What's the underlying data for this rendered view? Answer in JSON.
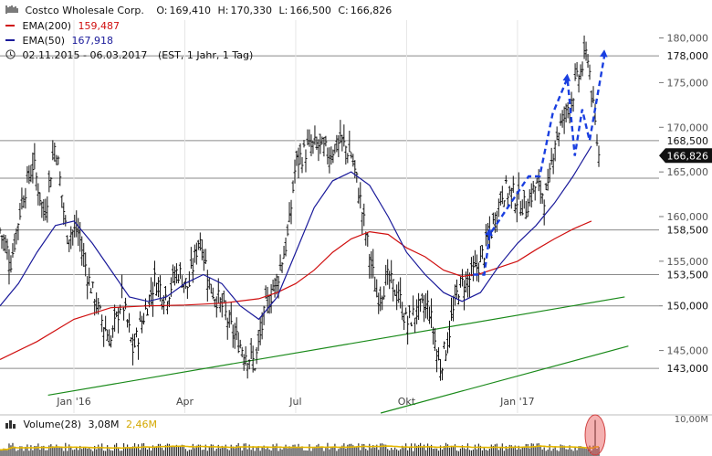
{
  "legend": {
    "bars_icon": "ohlc-bars-icon",
    "title": "Costco Wholesale Corp.",
    "ohlc": {
      "o_label": "O:",
      "o": "169,410",
      "h_label": "H:",
      "h": "170,330",
      "l_label": "L:",
      "l": "166,500",
      "c_label": "C:",
      "c": "166,826"
    },
    "ema200": {
      "label": "EMA(200)",
      "value": "159,487",
      "color": "#d01010"
    },
    "ema50": {
      "label": "EMA(50)",
      "value": "167,918",
      "color": "#1a1a9a"
    },
    "range": {
      "icon": "clock-icon",
      "text": "02.11.2015 - 06.03.2017",
      "meta": "(EST, 1 Jahr, 1 Tag)"
    }
  },
  "volume_panel": {
    "label": "Volume(28)",
    "value": "3,08M",
    "avg": "2,46M",
    "avg_color": "#e6b800",
    "scale_label": "10,00M"
  },
  "chart_data": {
    "type": "ohlc",
    "title": "Costco Wholesale Corp.",
    "y_range": [
      138,
      182
    ],
    "y_ticks": [
      "180,000",
      "175,000",
      "170,000",
      "165,000",
      "160,000",
      "155,000",
      "150,000",
      "145,000"
    ],
    "y_tick_values": [
      180,
      175,
      170,
      165,
      160,
      155,
      150,
      145
    ],
    "x_labels": [
      "Jan '16",
      "Apr",
      "Jul",
      "Okt",
      "Jan '17"
    ],
    "x_label_months": [
      2,
      5,
      8,
      11,
      14
    ],
    "months_span": [
      0,
      16.2
    ],
    "horizontal_levels": [
      178.0,
      168.5,
      164.3,
      158.5,
      153.5,
      150.0,
      143.0
    ],
    "price_tags": [
      {
        "value": 178.0,
        "label": "178,000"
      },
      {
        "value": 168.5,
        "label": "168,500"
      },
      {
        "value": 166.826,
        "label": "166,826",
        "current": true
      },
      {
        "value": 158.5,
        "label": "158,500"
      },
      {
        "value": 153.5,
        "label": "153,500"
      },
      {
        "value": 150.0,
        "label": "150,000"
      },
      {
        "value": 143.0,
        "label": "143,000"
      }
    ],
    "price_path_month_close": [
      [
        0.0,
        158.5
      ],
      [
        0.3,
        155.0
      ],
      [
        0.6,
        162.0
      ],
      [
        0.9,
        166.0
      ],
      [
        1.2,
        160.0
      ],
      [
        1.5,
        168.5
      ],
      [
        1.8,
        158.0
      ],
      [
        2.1,
        158.5
      ],
      [
        2.4,
        153.0
      ],
      [
        2.7,
        149.0
      ],
      [
        3.0,
        146.0
      ],
      [
        3.3,
        151.0
      ],
      [
        3.6,
        145.0
      ],
      [
        3.9,
        149.0
      ],
      [
        4.2,
        153.0
      ],
      [
        4.5,
        151.0
      ],
      [
        4.8,
        154.0
      ],
      [
        5.1,
        152.0
      ],
      [
        5.4,
        158.0
      ],
      [
        5.7,
        152.0
      ],
      [
        6.0,
        150.0
      ],
      [
        6.3,
        147.0
      ],
      [
        6.6,
        145.0
      ],
      [
        6.9,
        143.5
      ],
      [
        7.2,
        150.0
      ],
      [
        7.5,
        153.0
      ],
      [
        7.8,
        158.0
      ],
      [
        8.0,
        166.0
      ],
      [
        8.3,
        167.5
      ],
      [
        8.6,
        168.0
      ],
      [
        8.9,
        167.0
      ],
      [
        9.2,
        168.5
      ],
      [
        9.5,
        167.0
      ],
      [
        9.7,
        163.0
      ],
      [
        9.9,
        158.0
      ],
      [
        10.2,
        151.0
      ],
      [
        10.5,
        153.0
      ],
      [
        10.8,
        151.0
      ],
      [
        11.0,
        148.0
      ],
      [
        11.3,
        149.5
      ],
      [
        11.6,
        150.0
      ],
      [
        11.9,
        143.0
      ],
      [
        12.1,
        146.0
      ],
      [
        12.4,
        152.0
      ],
      [
        12.7,
        153.0
      ],
      [
        13.0,
        155.0
      ],
      [
        13.3,
        158.5
      ],
      [
        13.6,
        163.0
      ],
      [
        13.9,
        162.5
      ],
      [
        14.2,
        161.0
      ],
      [
        14.5,
        163.5
      ],
      [
        14.8,
        162.0
      ],
      [
        15.0,
        168.5
      ],
      [
        15.3,
        171.5
      ],
      [
        15.6,
        175.0
      ],
      [
        15.9,
        178.5
      ],
      [
        16.05,
        172.0
      ],
      [
        16.2,
        166.8
      ]
    ],
    "ema50_path": [
      [
        0.0,
        150.0
      ],
      [
        0.5,
        152.5
      ],
      [
        1.0,
        156.0
      ],
      [
        1.5,
        159.0
      ],
      [
        2.0,
        159.5
      ],
      [
        2.5,
        157.0
      ],
      [
        3.0,
        154.0
      ],
      [
        3.5,
        151.0
      ],
      [
        4.0,
        150.5
      ],
      [
        4.5,
        151.0
      ],
      [
        5.0,
        152.5
      ],
      [
        5.5,
        153.5
      ],
      [
        6.0,
        152.5
      ],
      [
        6.5,
        150.0
      ],
      [
        7.0,
        148.5
      ],
      [
        7.5,
        151.0
      ],
      [
        8.0,
        156.0
      ],
      [
        8.5,
        161.0
      ],
      [
        9.0,
        164.0
      ],
      [
        9.5,
        165.0
      ],
      [
        10.0,
        163.5
      ],
      [
        10.5,
        160.0
      ],
      [
        11.0,
        156.0
      ],
      [
        11.5,
        153.5
      ],
      [
        12.0,
        151.5
      ],
      [
        12.5,
        150.5
      ],
      [
        13.0,
        151.5
      ],
      [
        13.5,
        154.5
      ],
      [
        14.0,
        157.0
      ],
      [
        14.5,
        159.0
      ],
      [
        15.0,
        161.5
      ],
      [
        15.5,
        164.5
      ],
      [
        16.0,
        167.9
      ]
    ],
    "ema200_path": [
      [
        0.0,
        144.0
      ],
      [
        1.0,
        146.0
      ],
      [
        2.0,
        148.5
      ],
      [
        3.0,
        149.8
      ],
      [
        4.0,
        150.0
      ],
      [
        5.0,
        150.1
      ],
      [
        6.0,
        150.3
      ],
      [
        7.0,
        150.8
      ],
      [
        7.5,
        151.5
      ],
      [
        8.0,
        152.5
      ],
      [
        8.5,
        154.0
      ],
      [
        9.0,
        156.0
      ],
      [
        9.5,
        157.5
      ],
      [
        10.0,
        158.3
      ],
      [
        10.5,
        158.0
      ],
      [
        11.0,
        156.5
      ],
      [
        11.5,
        155.5
      ],
      [
        12.0,
        154.0
      ],
      [
        12.5,
        153.3
      ],
      [
        13.0,
        153.6
      ],
      [
        13.5,
        154.3
      ],
      [
        14.0,
        155.0
      ],
      [
        14.5,
        156.3
      ],
      [
        15.0,
        157.5
      ],
      [
        15.5,
        158.6
      ],
      [
        16.0,
        159.5
      ]
    ],
    "trend_lines": [
      {
        "from": [
          1.3,
          140.0
        ],
        "to": [
          16.9,
          151.0
        ],
        "color": "#1a8a1a"
      },
      {
        "from": [
          10.3,
          138.0
        ],
        "to": [
          17.0,
          145.5
        ],
        "color": "#1a8a1a"
      }
    ],
    "projection_path": [
      [
        12.8,
        153.5
      ],
      [
        13.1,
        153.5
      ],
      [
        13.25,
        158.0
      ],
      [
        14.3,
        164.5
      ],
      [
        14.6,
        164.5
      ],
      [
        14.95,
        171.5
      ],
      [
        15.35,
        175.5
      ],
      [
        15.55,
        166.8
      ],
      [
        15.75,
        172.0
      ],
      [
        15.95,
        168.5
      ],
      [
        16.35,
        178.0
      ]
    ],
    "projection_arrows": [
      {
        "from": [
          13.2,
          157.0
        ],
        "to": [
          13.25,
          158.7
        ]
      },
      {
        "from": [
          15.3,
          174.0
        ],
        "to": [
          15.35,
          176.0
        ]
      },
      {
        "from": [
          16.3,
          176.5
        ],
        "to": [
          16.35,
          178.7
        ]
      }
    ],
    "projection_color": "#1a3fe0",
    "volume_ylim": [
      0,
      10
    ]
  }
}
